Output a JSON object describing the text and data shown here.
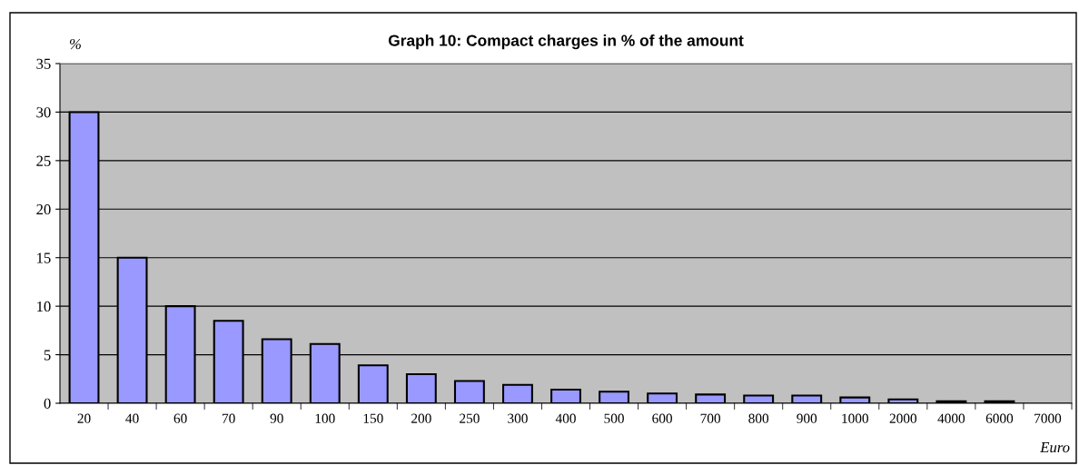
{
  "chart_data": {
    "type": "bar",
    "title": "Graph 10: Compact charges in % of the amount",
    "xlabel": "Euro",
    "ylabel": "%",
    "categories": [
      "20",
      "40",
      "60",
      "70",
      "90",
      "100",
      "150",
      "200",
      "250",
      "300",
      "400",
      "500",
      "600",
      "700",
      "800",
      "900",
      "1000",
      "2000",
      "4000",
      "6000",
      "7000"
    ],
    "values": [
      30,
      15,
      10,
      8.5,
      6.6,
      6.1,
      3.9,
      3.0,
      2.3,
      1.9,
      1.4,
      1.2,
      1.0,
      0.9,
      0.8,
      0.8,
      0.6,
      0.4,
      0.2,
      0.2,
      null
    ],
    "color": "#9999ff",
    "ylim": [
      0,
      35
    ],
    "yticks": [
      0,
      5,
      10,
      15,
      20,
      25,
      30,
      35
    ],
    "grid": "y"
  }
}
